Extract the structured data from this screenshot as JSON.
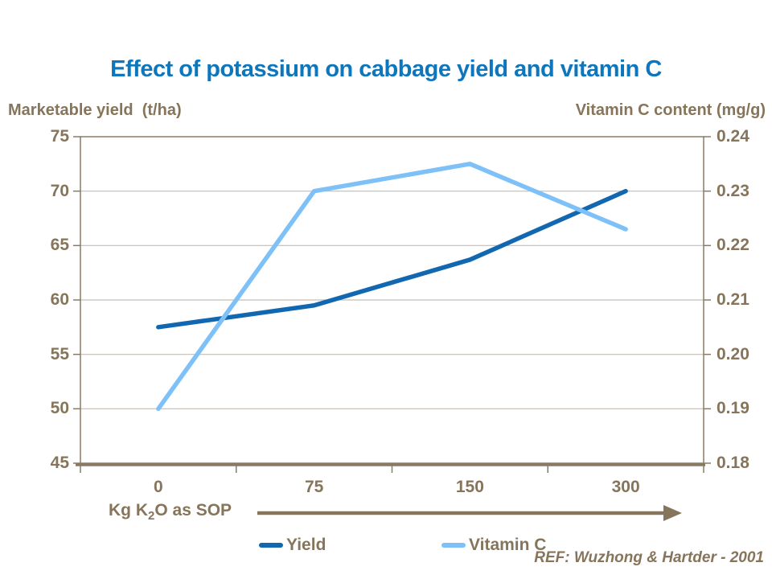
{
  "page": {
    "reference": "REF: Wuzhong & Hartder - 2001"
  },
  "colors": {
    "title_blue": "#0E76BD",
    "axis_text_brown": "#86755A",
    "plot_border_brown": "#8A7A63",
    "gridline_gray": "#C3BEB6",
    "yield_blue": "#1268B0",
    "vitamin_c_blue": "#7EC0F8",
    "background": "#FFFFFF"
  },
  "chart_data": {
    "type": "line",
    "title": "Effect of potassium on cabbage yield and vitamin C",
    "categories": [
      0,
      75,
      150,
      300
    ],
    "series": [
      {
        "name": "Yield",
        "axis": "left",
        "color": "#1268B0",
        "values": [
          57.5,
          59.5,
          63.7,
          70.0
        ]
      },
      {
        "name": "Vitamin C",
        "axis": "right",
        "color": "#7EC0F8",
        "values": [
          0.19,
          0.23,
          0.235,
          0.223
        ]
      }
    ],
    "left_axis": {
      "title": "Marketable yield  (t/ha)",
      "min": 45,
      "max": 75,
      "ticks": [
        75,
        70,
        65,
        60,
        55,
        50,
        45
      ]
    },
    "right_axis": {
      "title": "Vitamin C content (mg/g)",
      "min": 0.18,
      "max": 0.24,
      "ticks": [
        "0.24",
        "0.23",
        "0.22",
        "0.21",
        "0.20",
        "0.19",
        "0.18"
      ]
    },
    "x_axis": {
      "label_parts": [
        "Kg K",
        "2",
        "O as SOP"
      ],
      "tick_labels": [
        "0",
        "75",
        "150",
        "300"
      ]
    },
    "legend": [
      "Yield",
      "Vitamin C"
    ],
    "legend_position": "bottom",
    "grid": true
  }
}
